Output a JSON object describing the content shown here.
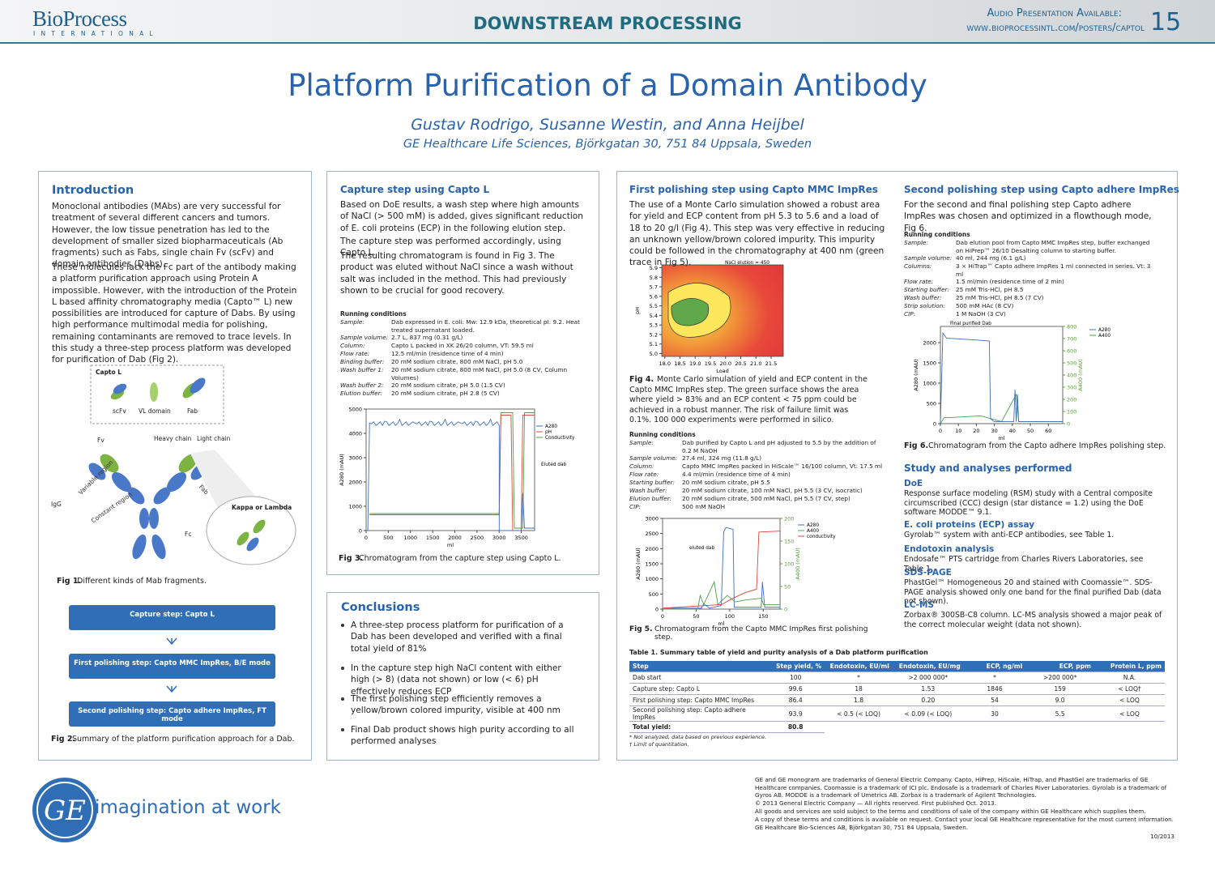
{
  "header": {
    "logo": "BioProcess",
    "logo_sub": "INTERNATIONAL",
    "section": "DOWNSTREAM PROCESSING",
    "audio": "Audio Presentation Available:",
    "url": "www.bioprocessintl.com/posters/captol",
    "page": "15"
  },
  "title": "Platform Purification of a Domain Antibody",
  "authors": "Gustav Rodrigo, Susanne Westin, and Anna Heijbel",
  "affiliation": "GE Healthcare Life Sciences, Björkgatan 30, 751 84 Uppsala, Sweden",
  "intro": {
    "heading": "Introduction",
    "paragraphs": [
      "Monoclonal antibodies (MAbs) are very successful for treatment of several different cancers and tumors. However, the low tissue penetration has led to the development of smaller sized biopharmaceuticals (Ab fragments) such as Fabs, single chain Fv (scFv) and domain antibodies (Dabs).",
      "These molecules lack the Fc part of the antibody making a platform purification approach using Protein A impossible. However, with the introduction of the Protein L based affinity chromatography media (Capto™ L) new possibilities are introduced for capture of Dabs. By using high performance multimodal media for polishing, remaining contaminants are removed to trace levels. In this study a three-step process platform was developed for purification of Dab (Fig 2)."
    ]
  },
  "fig1": {
    "labels": [
      "Capto L",
      "scFv",
      "VL domain",
      "Fab",
      "Fv",
      "Heavy chain",
      "Light chain",
      "Variable region",
      "Constant region",
      "Fab",
      "IgG",
      "Fc",
      "Kappa or Lambda"
    ],
    "caption_label": "Fig 1.",
    "caption": "Different kinds of Mab fragments."
  },
  "fig2": {
    "steps": [
      "Capture step: Capto L",
      "First polishing step: Capto MMC ImpRes, B/E mode",
      "Second polishing step: Capto adhere ImpRes, FT mode"
    ],
    "caption_label": "Fig 2.",
    "caption": "Summary of the platform purification approach for a Dab."
  },
  "capture": {
    "heading": "Capture step using Capto L",
    "paragraphs": [
      "Based on DoE results, a wash step where high amounts of NaCl (> 500 mM) is added, gives significant reduction of E. coli proteins (ECP) in the following elution step.",
      "The capture step was performed accordingly, using Capto L.",
      "The resulting chromatogram is found in Fig 3. The product was eluted without NaCl since a wash without salt was included in the method. This had previously shown to be crucial for good recovery."
    ],
    "conditions": {
      "heading": "Running conditions",
      "rows": [
        [
          "Sample:",
          "Dab expressed in E. coli: Mw: 12.9 kDa, theoretical pI: 9.2. Heat treated supernatant loaded."
        ],
        [
          "Sample volume:",
          "2.7 L, 837 mg (0.31 g/L)"
        ],
        [
          "Column:",
          "Capto L packed in XK 26/20 column, VT: 59.5 ml"
        ],
        [
          "Flow rate:",
          "12.5 ml/min (residence time of 4 min)"
        ],
        [
          "Binding buffer:",
          "20 mM sodium citrate, 800 mM NaCl, pH 5.0"
        ],
        [
          "Wash buffer 1:",
          "20 mM sodium citrate, 800 mM NaCl, pH 5.0 (8 CV, Column Volumes)"
        ],
        [
          "Wash buffer 2:",
          "20 mM sodium citrate, pH 5.0 (1.5 CV)"
        ],
        [
          "Elution buffer:",
          "20 mM sodium citrate, pH 2.8 (5 CV)"
        ]
      ]
    },
    "fig3": {
      "ylim": [
        0,
        5000
      ],
      "yticks": [
        0,
        1000,
        2000,
        3000,
        4000,
        5000
      ],
      "xlim": [
        0,
        3800
      ],
      "xticks": [
        0,
        500,
        1000,
        1500,
        2000,
        2500,
        3000,
        3500
      ],
      "ylabel": "A280 (mAU)",
      "xlabel": "ml",
      "legend": [
        "A280",
        "pH",
        "Conductivity"
      ],
      "annotation": "Eluted dab"
    },
    "caption_label": "Fig 3.",
    "caption": "Chromatogram from the capture step using Capto L."
  },
  "conclusions": {
    "heading": "Conclusions",
    "bullets": [
      "A three-step process platform for purification of a Dab has been developed and verified with a final total yield of 81%",
      "In the capture step high NaCl content with either high (> 8) (data not shown) or low (< 6) pH effectively reduces ECP",
      "The first polishing step efficiently removes a yellow/brown colored impurity, visible at 400 nm",
      "Final Dab product shows high purity according to all performed analyses"
    ]
  },
  "polish1": {
    "heading": "First polishing step using Capto MMC ImpRes",
    "paragraph": "The use of a Monte Carlo simulation showed a robust area for yield and ECP content from pH 5.3 to 5.6 and a load of 18 to 20 g/l (Fig 4). This step was very effective in reducing an unknown yellow/brown colored impurity. This impurity could be followed in the chromatography at 400 nm (green trace in Fig 5).",
    "fig4": {
      "ylim": [
        4.97,
        5.93
      ],
      "yticks": [
        {
          "value": 5,
          "label": "5.0"
        },
        5.1,
        5.2,
        5.3,
        5.4,
        5.5,
        5.6,
        5.7,
        5.8,
        5.9
      ],
      "xlim": [
        17.9,
        21.9
      ],
      "xticks": [
        {
          "value": 18,
          "label": "18.0"
        },
        18.5,
        {
          "value": 19,
          "label": "19.0"
        },
        19.5,
        {
          "value": 20,
          "label": "20.0"
        },
        20.5,
        {
          "value": 21,
          "label": "21.0"
        },
        21.5
      ],
      "ylabel": "pH",
      "xlabel": "Load",
      "annotation": "NaCl elution = 450"
    },
    "fig4_caption_label": "Fig 4.",
    "fig4_caption": "Monte Carlo simulation of yield and ECP content in the Capto MMC ImpRes step. The green surface shows the area where yield > 83% and an ECP content < 75 ppm could be achieved in a robust manner. The risk of failure limit was 0.1%. 100 000 experiments were performed in silico.",
    "conditions": {
      "heading": "Running conditions",
      "rows": [
        [
          "Sample:",
          "Dab purified by Capto L and pH adjusted to 5.5 by the addition of 0.2 M NaOH"
        ],
        [
          "Sample volume:",
          "27.4 ml, 324 mg (11.8 g/L)"
        ],
        [
          "Column:",
          "Capto MMC ImpRes packed in HiScale™ 16/100 column, Vt: 17.5 ml"
        ],
        [
          "Flow rate:",
          "4.4 ml/min (residence time of 4 min)"
        ],
        [
          "Starting buffer:",
          "20 mM sodium citrate, pH 5.5"
        ],
        [
          "Wash buffer:",
          "20 mM sodium citrate, 100 mM NaCl, pH 5.5 (3 CV, isocratic)"
        ],
        [
          "Elution buffer:",
          "20 mM sodium citrate, 500 mM NaCl, pH 5.5 (7 CV, step)"
        ],
        [
          "CIP:",
          "500 mM NaOH"
        ]
      ]
    },
    "fig5": {
      "ylim": [
        0,
        3000
      ],
      "yticks": [
        0,
        500,
        1000,
        1500,
        2000,
        2500,
        3000
      ],
      "y2lim": [
        0,
        200
      ],
      "y2ticks": [
        0,
        50,
        100,
        150,
        200
      ],
      "xlim": [
        0,
        175
      ],
      "xticks": [
        0,
        50,
        100,
        150
      ],
      "ylabel": "A280 (mAU)",
      "y2label": "A400 (mAU)",
      "xlabel": "ml",
      "legend": [
        "A280",
        "A400",
        "conductivity"
      ],
      "annotation": "eluted dab"
    },
    "fig5_caption_label": "Fig 5.",
    "fig5_caption": "Chromatogram from the Capto MMC ImpRes first polishing step."
  },
  "polish2": {
    "heading": "Second polishing step using Capto adhere ImpRes",
    "paragraph": "For the second and final polishing step Capto adhere ImpRes was chosen and optimized in a flowthough mode, Fig 6.",
    "conditions": {
      "heading": "Running conditions",
      "rows": [
        [
          "Sample:",
          "Dab elution pool from Capto MMC ImpRes step, buffer exchanged on HiPrep™ 26/10 Desalting column to starting buffer."
        ],
        [
          "Sample volume:",
          "40 ml, 244 mg (6.1 g/L)"
        ],
        [
          "Columns:",
          "3 × HiTrap™ Capto adhere ImpRes 1 ml connected in series. Vt: 3 ml"
        ],
        [
          "Flow rate:",
          "1.5 ml/min (residence time of 2 min)"
        ],
        [
          "Starting buffer:",
          "25 mM Tris-HCl, pH 8.5"
        ],
        [
          "Wash buffer:",
          "25 mM Tris-HCl, pH 8.5 (7 CV)"
        ],
        [
          "Strip solution:",
          "500 mM HAc (8 CV)"
        ],
        [
          "CIP:",
          "1 M NaOH (3 CV)"
        ]
      ]
    },
    "fig6": {
      "ylim": [
        0,
        2400
      ],
      "yticks": [
        0,
        500,
        1000,
        1500,
        2000
      ],
      "y2lim": [
        0,
        800
      ],
      "y2ticks": [
        0,
        100,
        200,
        300,
        400,
        500,
        600,
        700,
        800
      ],
      "xlim": [
        0,
        68
      ],
      "xticks": [
        0,
        10,
        20,
        30,
        40,
        50,
        60
      ],
      "ylabel": "A280 (mAU)",
      "y2label": "A400 (mAU)",
      "xlabel": "ml",
      "legend": [
        "A280",
        "A400"
      ],
      "annotation": "Final purified Dab"
    },
    "fig6_caption_label": "Fig 6.",
    "fig6_caption": "Chromatogram from the Capto adhere ImpRes polishing step."
  },
  "study": {
    "heading": "Study and analyses performed",
    "items": [
      {
        "title": "DoE",
        "text": "Response surface modeling (RSM) study with a Central composite circumscribed (CCC) design (star distance = 1.2) using the DoE software MODDE™ 9.1."
      },
      {
        "title": "E. coli proteins (ECP) assay",
        "text": "Gyrolab™ system with anti-ECP antibodies, see Table 1."
      },
      {
        "title": "Endotoxin analysis",
        "text": "Endosafe™ PTS cartridge from Charles Rivers Laboratories, see Table 1."
      },
      {
        "title": "SDS-PAGE",
        "text": "PhastGel™ Homogeneous 20 and stained with Coomassie™. SDS-PAGE analysis showed only one band for the final purified Dab (data not shown)."
      },
      {
        "title": "LC-MS",
        "text": "Zorbax® 300SB-C8 column. LC-MS analysis showed a major peak of the correct molecular weight (data not shown)."
      }
    ]
  },
  "table1": {
    "caption": "Table 1. Summary table of yield and purity analysis of a Dab platform purification",
    "header": [
      "Step",
      "Step yield, %",
      "Endotoxin, EU/ml",
      "Endotoxin, EU/mg",
      "ECP, ng/ml",
      "ECP, ppm",
      "Protein L, ppm"
    ],
    "rows": [
      [
        "Dab start",
        "100",
        "*",
        ">2 000 000*",
        "*",
        ">200 000*",
        "N.A."
      ],
      [
        "Capture step: Capto L",
        "99.6",
        "18",
        "1.53",
        "1846",
        "159",
        "< LOQ†"
      ],
      [
        "First polishing step: Capto MMC ImpRes",
        "86.4",
        "1.8",
        "0.20",
        "54",
        "9.0",
        "< LOQ"
      ],
      [
        "Second polishing step: Capto adhere ImpRes",
        "93.9",
        "< 0.5 (< LOQ)",
        "< 0.09 (< LOQ)",
        "30",
        "5.5",
        "< LOQ"
      ],
      [
        "Total yield:",
        "80.8"
      ]
    ],
    "footnotes": [
      "* Not analyzed, data based on previous experience.",
      "† Limit of quantitation."
    ]
  },
  "footer": {
    "tagline": "imagination at work",
    "lines": [
      "GE and GE monogram are trademarks of General Electric Company. Capto, HiPrep, HiScale, HiTrap, and PhastGel are trademarks of GE Healthcare companies. Coomassie is a trademark of ICI plc. Endosafe is a trademark of Charles River Laboratories. Gyrolab is a trademark of Gyros AB. MODDE is a trademark of Umetrics AB. Zorbax is a trademark of Agilent Technologies.",
      "© 2013 General Electric Company — All rights reserved. First published Oct. 2013.",
      "All goods and services are sold subject to the terms and conditions of sale of the company within GE Healthcare which supplies them.",
      "A copy of these terms and conditions is available on request. Contact your local GE Healthcare representative for the most current information.",
      "GE Healthcare Bio-Sciences AB, Björkgatan 30, 751 84 Uppsala, Sweden."
    ],
    "date": "10/2013"
  }
}
